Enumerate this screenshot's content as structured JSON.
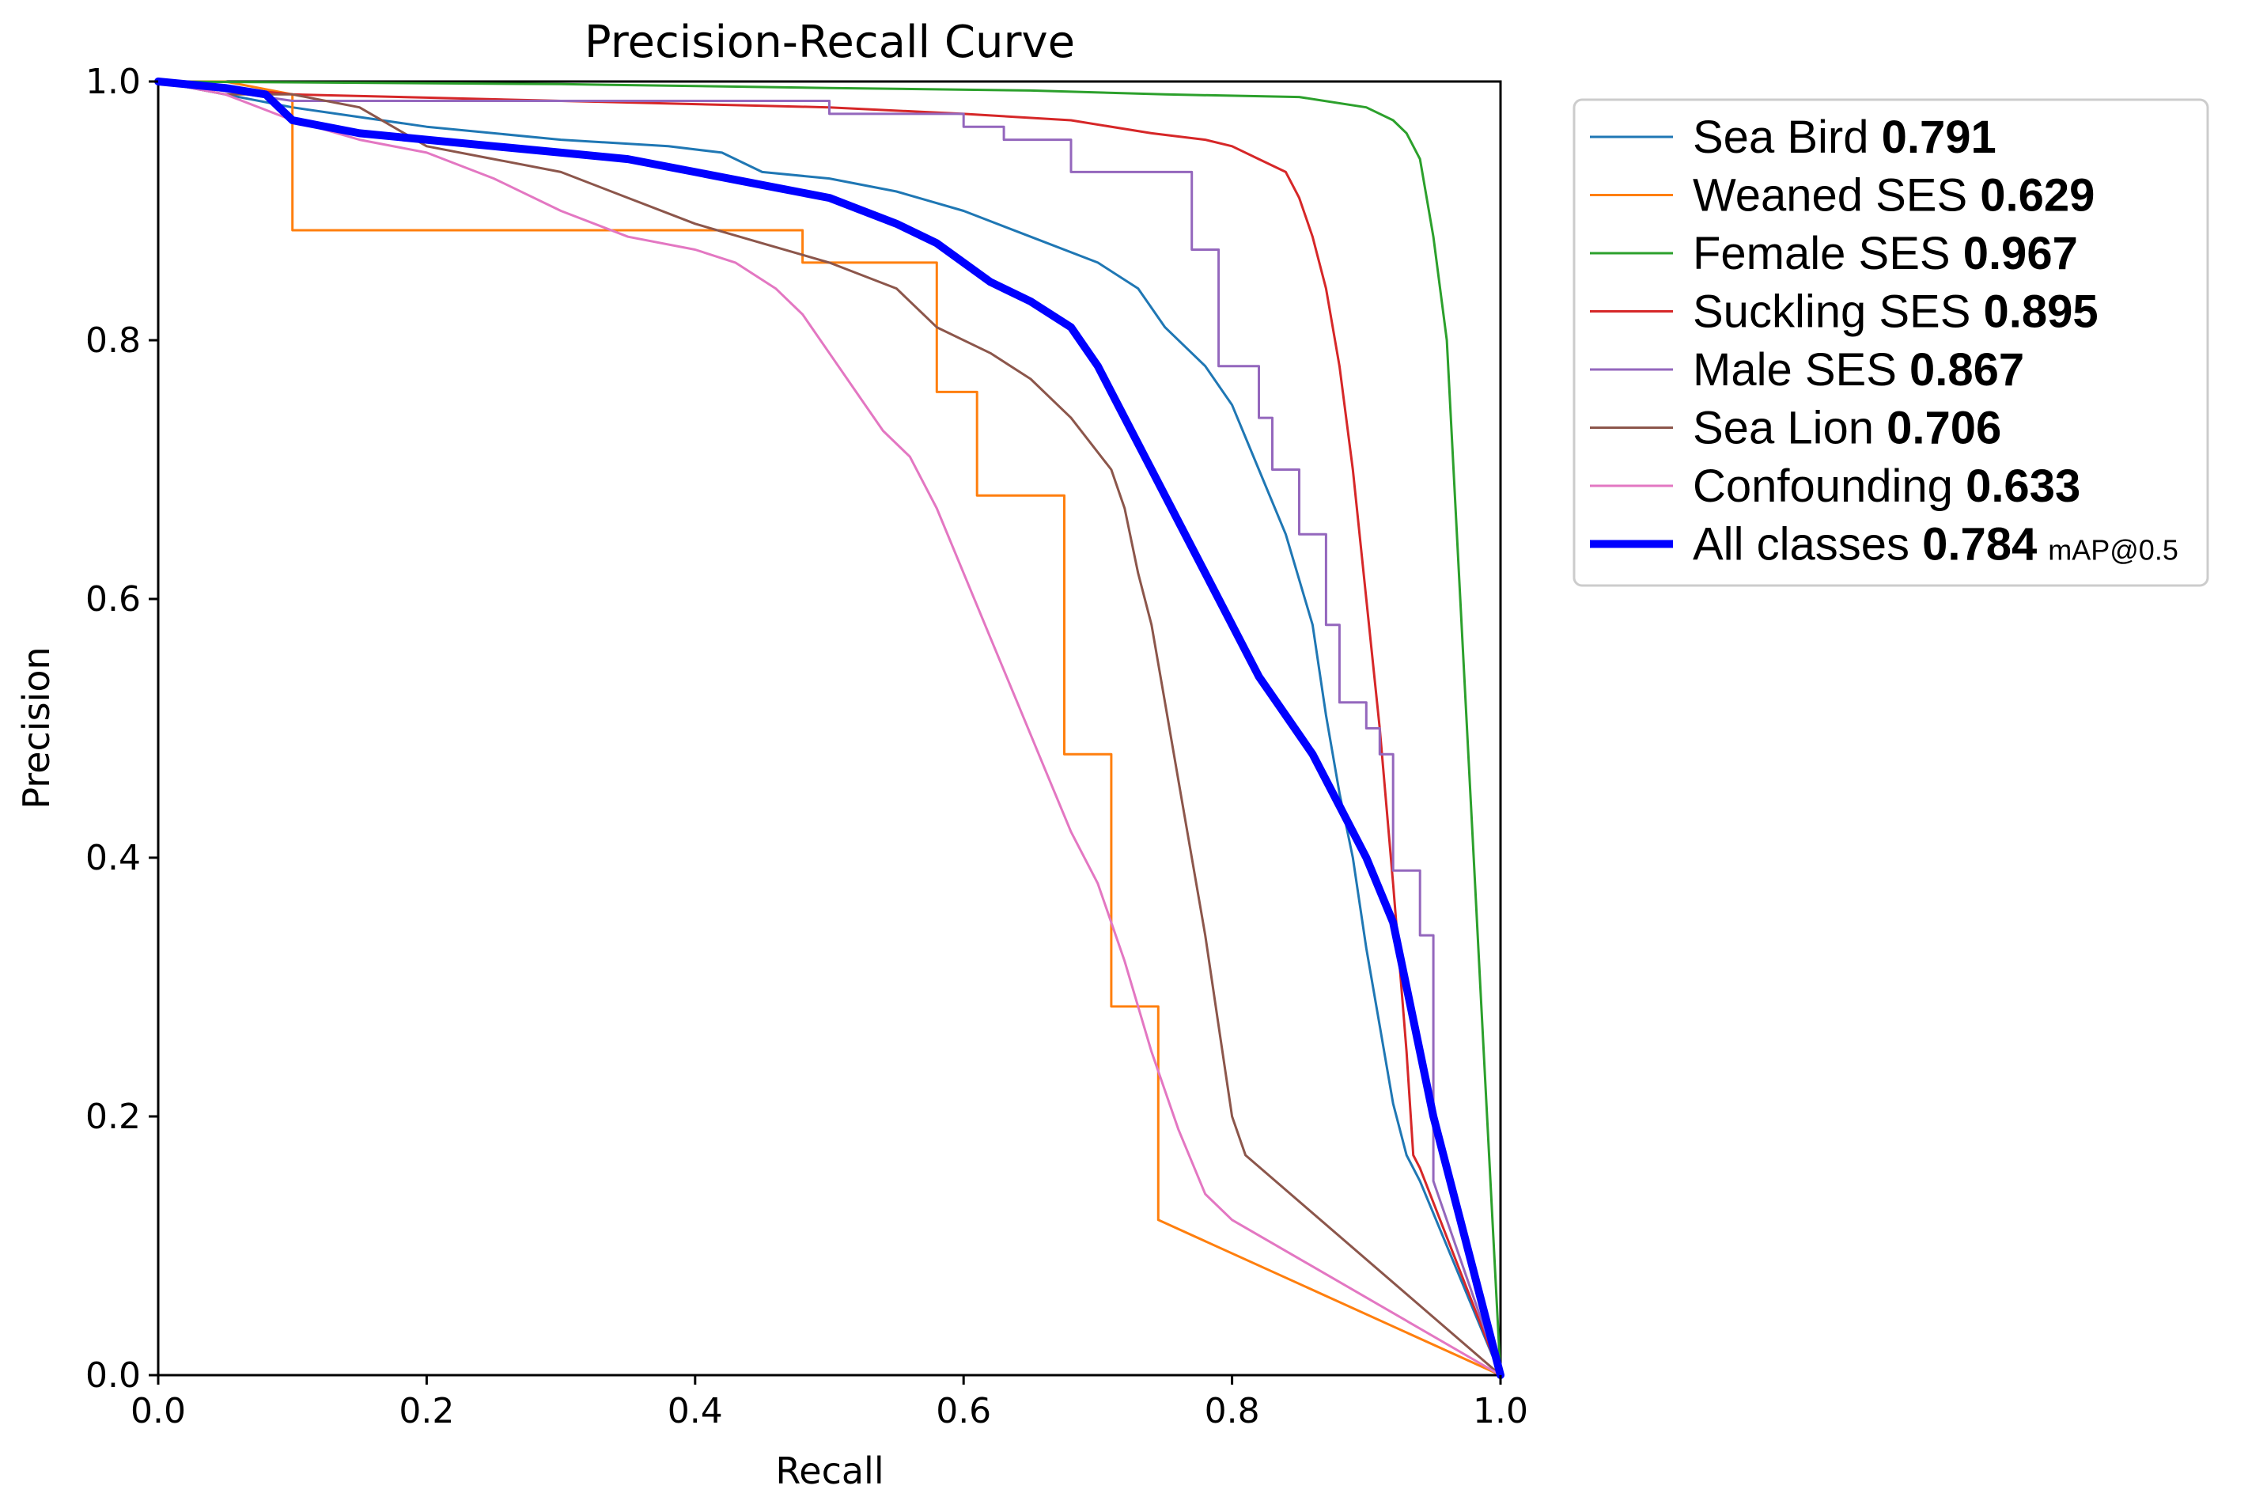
{
  "chart_data": {
    "type": "line",
    "title": "Precision-Recall Curve",
    "xlabel": "Recall",
    "ylabel": "Precision",
    "xlim": [
      0,
      1
    ],
    "ylim": [
      0,
      1
    ],
    "xticks": [
      "0.0",
      "0.2",
      "0.4",
      "0.6",
      "0.8",
      "1.0"
    ],
    "yticks": [
      "0.0",
      "0.2",
      "0.4",
      "0.6",
      "0.8",
      "1.0"
    ],
    "grid": false,
    "legend_position": "outside-right-top",
    "legend_suffix": "mAP@0.5",
    "series": [
      {
        "name": "Sea Bird",
        "value": "0.791",
        "color": "#1f77b4",
        "width": 3,
        "points": [
          [
            0,
            1.0
          ],
          [
            0.05,
            0.99
          ],
          [
            0.1,
            0.98
          ],
          [
            0.2,
            0.965
          ],
          [
            0.3,
            0.955
          ],
          [
            0.38,
            0.95
          ],
          [
            0.42,
            0.945
          ],
          [
            0.45,
            0.93
          ],
          [
            0.5,
            0.925
          ],
          [
            0.55,
            0.915
          ],
          [
            0.6,
            0.9
          ],
          [
            0.65,
            0.88
          ],
          [
            0.7,
            0.86
          ],
          [
            0.73,
            0.84
          ],
          [
            0.75,
            0.81
          ],
          [
            0.78,
            0.78
          ],
          [
            0.8,
            0.75
          ],
          [
            0.82,
            0.7
          ],
          [
            0.84,
            0.65
          ],
          [
            0.86,
            0.58
          ],
          [
            0.87,
            0.51
          ],
          [
            0.88,
            0.45
          ],
          [
            0.89,
            0.4
          ],
          [
            0.9,
            0.33
          ],
          [
            0.91,
            0.27
          ],
          [
            0.92,
            0.21
          ],
          [
            0.93,
            0.17
          ],
          [
            0.94,
            0.15
          ],
          [
            1.0,
            0.0
          ]
        ]
      },
      {
        "name": "Weaned SES",
        "value": "0.629",
        "color": "#ff7f0e",
        "width": 3,
        "points": [
          [
            0,
            1.0
          ],
          [
            0.05,
            1.0
          ],
          [
            0.1,
            0.99
          ],
          [
            0.1,
            0.885
          ],
          [
            0.48,
            0.885
          ],
          [
            0.48,
            0.86
          ],
          [
            0.58,
            0.86
          ],
          [
            0.58,
            0.76
          ],
          [
            0.61,
            0.76
          ],
          [
            0.61,
            0.68
          ],
          [
            0.675,
            0.68
          ],
          [
            0.675,
            0.48
          ],
          [
            0.71,
            0.48
          ],
          [
            0.71,
            0.285
          ],
          [
            0.745,
            0.285
          ],
          [
            0.745,
            0.12
          ],
          [
            1.0,
            0.0
          ]
        ]
      },
      {
        "name": "Female SES",
        "value": "0.967",
        "color": "#2ca02c",
        "width": 3,
        "points": [
          [
            0,
            1.0
          ],
          [
            0.3,
            0.998
          ],
          [
            0.5,
            0.995
          ],
          [
            0.65,
            0.993
          ],
          [
            0.75,
            0.99
          ],
          [
            0.85,
            0.988
          ],
          [
            0.9,
            0.98
          ],
          [
            0.92,
            0.97
          ],
          [
            0.93,
            0.96
          ],
          [
            0.94,
            0.94
          ],
          [
            0.95,
            0.88
          ],
          [
            0.96,
            0.8
          ],
          [
            0.965,
            0.7
          ],
          [
            0.97,
            0.6
          ],
          [
            0.975,
            0.5
          ],
          [
            0.98,
            0.4
          ],
          [
            0.985,
            0.3
          ],
          [
            0.99,
            0.2
          ],
          [
            1.0,
            0.0
          ]
        ]
      },
      {
        "name": "Suckling SES",
        "value": "0.895",
        "color": "#d62728",
        "width": 3,
        "points": [
          [
            0,
            1.0
          ],
          [
            0.1,
            0.99
          ],
          [
            0.3,
            0.985
          ],
          [
            0.5,
            0.98
          ],
          [
            0.6,
            0.975
          ],
          [
            0.68,
            0.97
          ],
          [
            0.74,
            0.96
          ],
          [
            0.78,
            0.955
          ],
          [
            0.8,
            0.95
          ],
          [
            0.82,
            0.94
          ],
          [
            0.84,
            0.93
          ],
          [
            0.85,
            0.91
          ],
          [
            0.86,
            0.88
          ],
          [
            0.87,
            0.84
          ],
          [
            0.88,
            0.78
          ],
          [
            0.89,
            0.7
          ],
          [
            0.9,
            0.6
          ],
          [
            0.91,
            0.5
          ],
          [
            0.92,
            0.38
          ],
          [
            0.93,
            0.25
          ],
          [
            0.935,
            0.17
          ],
          [
            0.94,
            0.16
          ],
          [
            1.0,
            0.0
          ]
        ]
      },
      {
        "name": "Male SES",
        "value": "0.867",
        "color": "#9467bd",
        "width": 3,
        "points": [
          [
            0,
            1.0
          ],
          [
            0.1,
            0.985
          ],
          [
            0.3,
            0.985
          ],
          [
            0.5,
            0.985
          ],
          [
            0.5,
            0.975
          ],
          [
            0.6,
            0.975
          ],
          [
            0.6,
            0.965
          ],
          [
            0.63,
            0.965
          ],
          [
            0.63,
            0.955
          ],
          [
            0.68,
            0.955
          ],
          [
            0.68,
            0.93
          ],
          [
            0.77,
            0.93
          ],
          [
            0.77,
            0.87
          ],
          [
            0.79,
            0.87
          ],
          [
            0.79,
            0.78
          ],
          [
            0.82,
            0.78
          ],
          [
            0.82,
            0.74
          ],
          [
            0.83,
            0.74
          ],
          [
            0.83,
            0.7
          ],
          [
            0.85,
            0.7
          ],
          [
            0.85,
            0.65
          ],
          [
            0.87,
            0.65
          ],
          [
            0.87,
            0.58
          ],
          [
            0.88,
            0.58
          ],
          [
            0.88,
            0.52
          ],
          [
            0.9,
            0.52
          ],
          [
            0.9,
            0.5
          ],
          [
            0.91,
            0.5
          ],
          [
            0.91,
            0.48
          ],
          [
            0.92,
            0.48
          ],
          [
            0.92,
            0.39
          ],
          [
            0.94,
            0.39
          ],
          [
            0.94,
            0.34
          ],
          [
            0.95,
            0.34
          ],
          [
            0.95,
            0.15
          ],
          [
            1.0,
            0.0
          ]
        ]
      },
      {
        "name": "Sea Lion",
        "value": "0.706",
        "color": "#8c564b",
        "width": 3,
        "points": [
          [
            0,
            1.0
          ],
          [
            0.05,
            0.99
          ],
          [
            0.1,
            0.99
          ],
          [
            0.15,
            0.98
          ],
          [
            0.2,
            0.95
          ],
          [
            0.25,
            0.94
          ],
          [
            0.3,
            0.93
          ],
          [
            0.35,
            0.91
          ],
          [
            0.4,
            0.89
          ],
          [
            0.45,
            0.875
          ],
          [
            0.5,
            0.86
          ],
          [
            0.55,
            0.84
          ],
          [
            0.58,
            0.81
          ],
          [
            0.62,
            0.79
          ],
          [
            0.65,
            0.77
          ],
          [
            0.68,
            0.74
          ],
          [
            0.71,
            0.7
          ],
          [
            0.72,
            0.67
          ],
          [
            0.73,
            0.62
          ],
          [
            0.74,
            0.58
          ],
          [
            0.75,
            0.52
          ],
          [
            0.76,
            0.46
          ],
          [
            0.77,
            0.4
          ],
          [
            0.78,
            0.34
          ],
          [
            0.79,
            0.27
          ],
          [
            0.8,
            0.2
          ],
          [
            0.81,
            0.17
          ],
          [
            1.0,
            0.0
          ]
        ]
      },
      {
        "name": "Confounding",
        "value": "0.633",
        "color": "#e377c2",
        "width": 3,
        "points": [
          [
            0,
            1.0
          ],
          [
            0.05,
            0.99
          ],
          [
            0.1,
            0.97
          ],
          [
            0.15,
            0.955
          ],
          [
            0.2,
            0.945
          ],
          [
            0.25,
            0.925
          ],
          [
            0.3,
            0.9
          ],
          [
            0.35,
            0.88
          ],
          [
            0.4,
            0.87
          ],
          [
            0.43,
            0.86
          ],
          [
            0.46,
            0.84
          ],
          [
            0.48,
            0.82
          ],
          [
            0.5,
            0.79
          ],
          [
            0.52,
            0.76
          ],
          [
            0.54,
            0.73
          ],
          [
            0.56,
            0.71
          ],
          [
            0.58,
            0.67
          ],
          [
            0.6,
            0.62
          ],
          [
            0.62,
            0.57
          ],
          [
            0.64,
            0.52
          ],
          [
            0.66,
            0.47
          ],
          [
            0.68,
            0.42
          ],
          [
            0.7,
            0.38
          ],
          [
            0.72,
            0.32
          ],
          [
            0.74,
            0.25
          ],
          [
            0.76,
            0.19
          ],
          [
            0.78,
            0.14
          ],
          [
            0.8,
            0.12
          ],
          [
            1.0,
            0.0
          ]
        ]
      },
      {
        "name": "All classes",
        "value": "0.784",
        "suffix": "mAP@0.5",
        "color": "#0000ff",
        "width": 10,
        "points": [
          [
            0,
            1.0
          ],
          [
            0.05,
            0.995
          ],
          [
            0.08,
            0.99
          ],
          [
            0.1,
            0.97
          ],
          [
            0.15,
            0.96
          ],
          [
            0.2,
            0.955
          ],
          [
            0.25,
            0.95
          ],
          [
            0.3,
            0.945
          ],
          [
            0.35,
            0.94
          ],
          [
            0.4,
            0.93
          ],
          [
            0.45,
            0.92
          ],
          [
            0.5,
            0.91
          ],
          [
            0.55,
            0.89
          ],
          [
            0.58,
            0.875
          ],
          [
            0.6,
            0.86
          ],
          [
            0.62,
            0.845
          ],
          [
            0.65,
            0.83
          ],
          [
            0.68,
            0.81
          ],
          [
            0.7,
            0.78
          ],
          [
            0.72,
            0.74
          ],
          [
            0.74,
            0.7
          ],
          [
            0.76,
            0.66
          ],
          [
            0.78,
            0.62
          ],
          [
            0.8,
            0.58
          ],
          [
            0.82,
            0.54
          ],
          [
            0.84,
            0.51
          ],
          [
            0.86,
            0.48
          ],
          [
            0.88,
            0.44
          ],
          [
            0.9,
            0.4
          ],
          [
            0.92,
            0.35
          ],
          [
            0.93,
            0.3
          ],
          [
            0.94,
            0.25
          ],
          [
            0.95,
            0.2
          ],
          [
            0.96,
            0.16
          ],
          [
            0.97,
            0.12
          ],
          [
            0.98,
            0.08
          ],
          [
            1.0,
            0.0
          ]
        ]
      }
    ]
  }
}
